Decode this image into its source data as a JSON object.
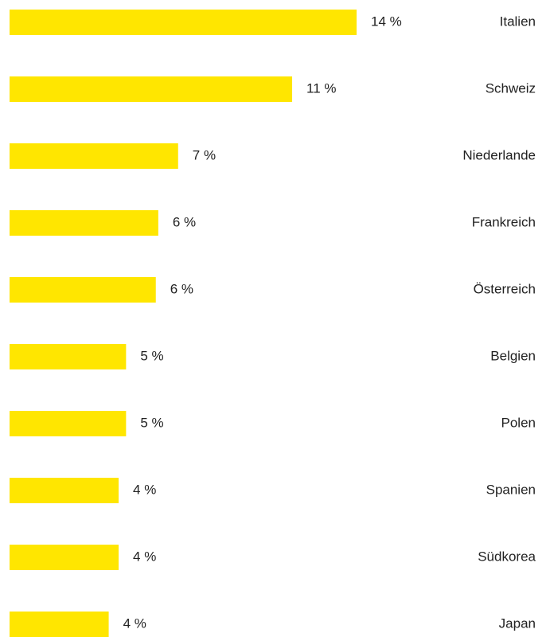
{
  "chart_data": {
    "type": "bar",
    "orientation": "horizontal",
    "color": "#ffe600",
    "categories": [
      "Italien",
      "Schweiz",
      "Niederlande",
      "Frankreich",
      "Österreich",
      "Belgien",
      "Polen",
      "Spanien",
      "Südkorea",
      "Japan"
    ],
    "values": [
      14,
      11.4,
      6.8,
      6.0,
      5.9,
      4.7,
      4.7,
      4.4,
      4.4,
      4.0
    ],
    "value_labels": [
      "14 %",
      "11 %",
      "7 %",
      "6 %",
      "6 %",
      "5 %",
      "5 %",
      "4 %",
      "4 %",
      "4 %"
    ],
    "xlim": [
      0,
      14
    ]
  }
}
